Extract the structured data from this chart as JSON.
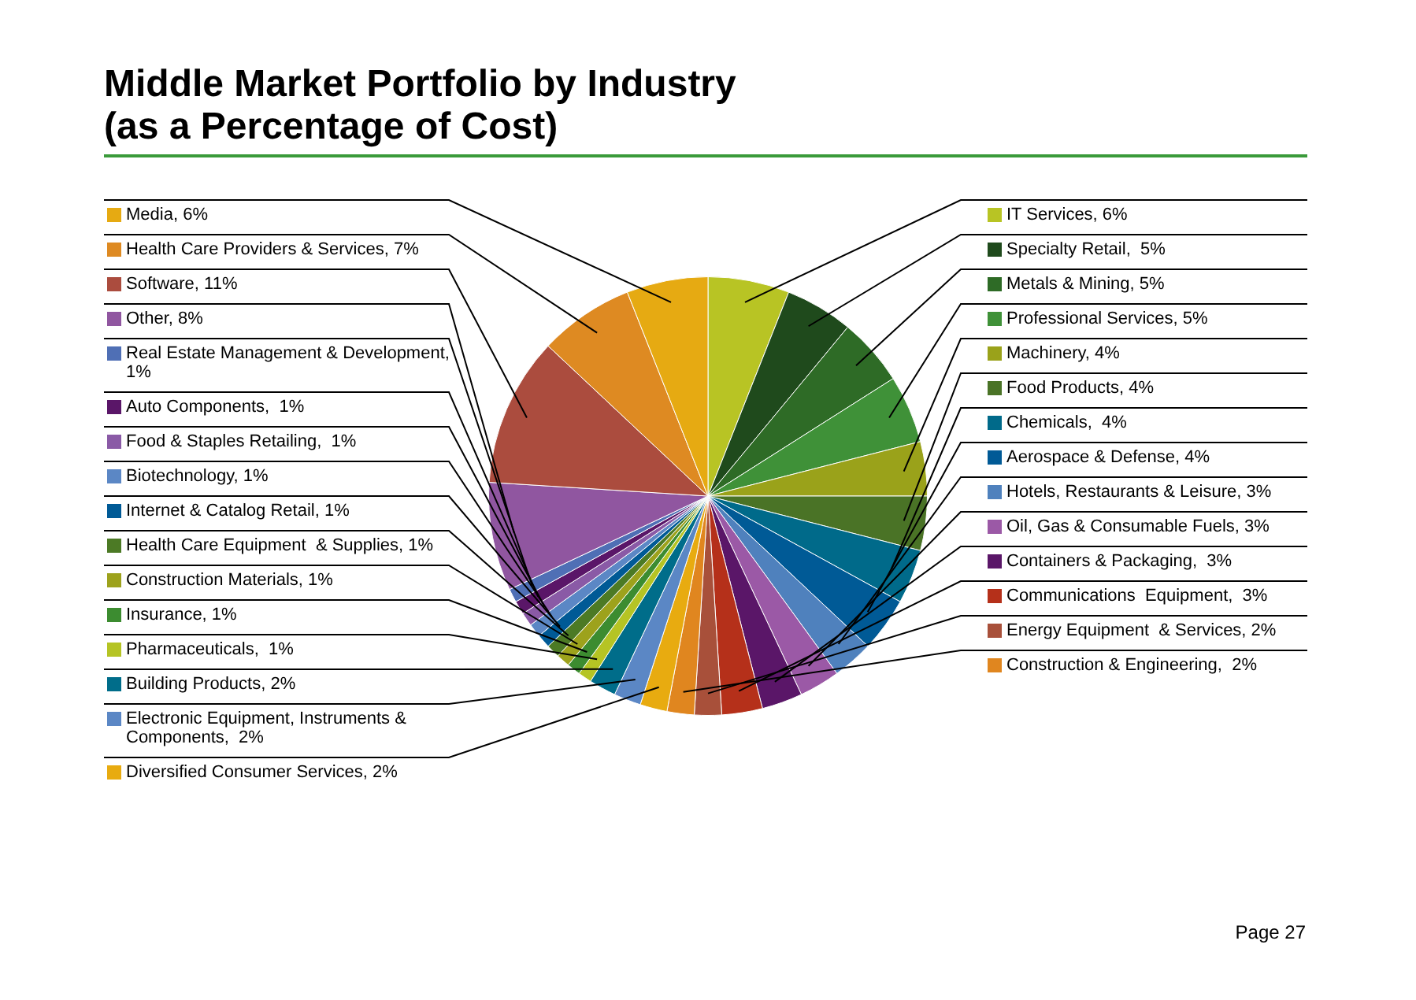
{
  "chart_data": {
    "type": "pie",
    "title": "Middle Market Portfolio by Industry\n(as a Percentage of Cost)",
    "categories": [
      "IT Services, 6%",
      "Specialty Retail,  5%",
      "Metals & Mining, 5%",
      "Professional Services, 5%",
      "Machinery, 4%",
      "Food Products, 4%",
      "Chemicals,  4%",
      "Aerospace & Defense, 4%",
      "Hotels, Restaurants & Leisure, 3%",
      "Oil, Gas & Consumable Fuels, 3%",
      "Containers & Packaging,  3%",
      "Communications  Equipment,  3%",
      "Energy Equipment  & Services, 2%",
      "Construction & Engineering,  2%",
      "Diversified Consumer Services, 2%",
      "Electronic Equipment, Instruments & Components,  2%",
      "Building Products, 2%",
      "Pharmaceuticals,  1%",
      "Insurance, 1%",
      "Construction Materials, 1%",
      "Health Care Equipment  & Supplies, 1%",
      "Internet & Catalog Retail, 1%",
      "Biotechnology, 1%",
      "Food & Staples Retailing,  1%",
      "Auto Components,  1%",
      "Real Estate Management & Development,  1%",
      "Other, 8%",
      "Software, 11%",
      "Health Care Providers & Services, 7%",
      "Media, 6%"
    ],
    "values": [
      6,
      5,
      5,
      5,
      4,
      4,
      4,
      4,
      3,
      3,
      3,
      3,
      2,
      2,
      2,
      2,
      2,
      1,
      1,
      1,
      1,
      1,
      1,
      1,
      1,
      1,
      8,
      11,
      7,
      6
    ],
    "colors": [
      "#b8c424",
      "#1f4a1c",
      "#2e6b26",
      "#3f9138",
      "#9aa21a",
      "#4a7326",
      "#006a8a",
      "#005a96",
      "#4f81bd",
      "#9b59a6",
      "#5a1668",
      "#b5301a",
      "#a8503a",
      "#e0861f",
      "#e8ab10",
      "#5b87c5",
      "#006d8a",
      "#b5c424",
      "#3c8c30",
      "#9da21c",
      "#4c7a25",
      "#005a96",
      "#5b87c5",
      "#8a5aa6",
      "#5a1668",
      "#4f6fb5",
      "#9056a0",
      "#ab4c3e",
      "#de8a22",
      "#e6aa12"
    ],
    "annotations": [
      "Page 27"
    ],
    "legend": "left"
  }
}
